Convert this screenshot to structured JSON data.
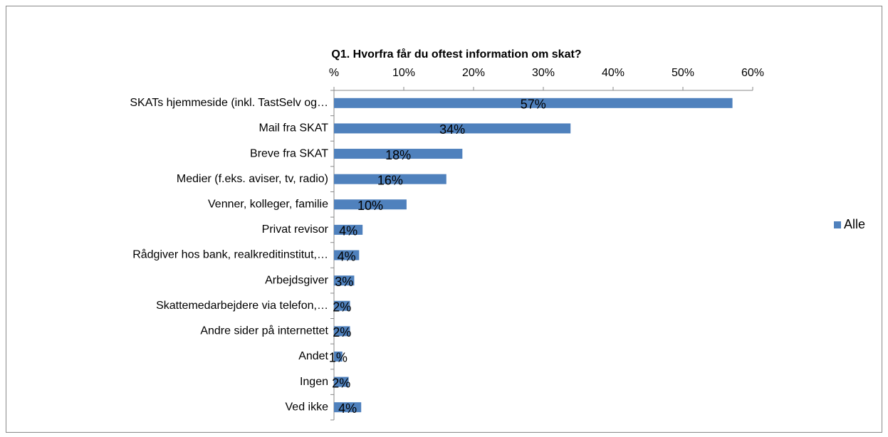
{
  "chart_data": {
    "type": "bar",
    "orientation": "horizontal",
    "title": "Q1. Hvorfra får du oftest information om skat?",
    "categories": [
      "SKATs hjemmeside (inkl. TastSelv og…",
      "Mail fra SKAT",
      "Breve fra SKAT",
      "Medier (f.eks. aviser, tv, radio)",
      "Venner, kolleger, familie",
      "Privat revisor",
      "Rådgiver hos bank, realkreditinstitut,…",
      "Arbejdsgiver",
      "Skattemedarbejdere via telefon,…",
      "Andre sider på internettet",
      "Andet",
      "Ingen",
      "Ved ikke"
    ],
    "series": [
      {
        "name": "Alle",
        "color": "#4f81bd",
        "values": [
          57.1,
          33.9,
          18.4,
          16.1,
          10.4,
          4.1,
          3.6,
          2.9,
          2.3,
          2.3,
          1.2,
          2.1,
          3.9
        ],
        "value_labels": [
          "57%",
          "34%",
          "18%",
          "16%",
          "10%",
          "4%",
          "4%",
          "3%",
          "2%",
          "2%",
          "1%",
          "2%",
          "4%"
        ]
      }
    ],
    "xlim": [
      0,
      60
    ],
    "xticks": [
      {
        "value": 0,
        "label": "%"
      },
      {
        "value": 10,
        "label": "10%"
      },
      {
        "value": 20,
        "label": "20%"
      },
      {
        "value": 30,
        "label": "30%"
      },
      {
        "value": 40,
        "label": "40%"
      },
      {
        "value": 50,
        "label": "50%"
      },
      {
        "value": 60,
        "label": "60%"
      }
    ],
    "legend": "right"
  }
}
